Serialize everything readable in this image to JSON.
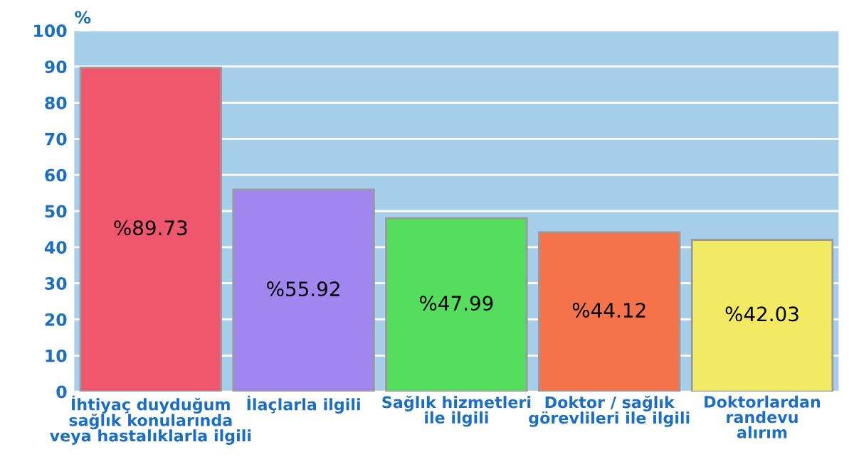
{
  "chart_data": {
    "type": "bar",
    "ylabel": "%",
    "categories": [
      "İhtiyaç duyduğum\nsağlık konularında\nveya hastalıklarla ilgili",
      "İlaçlarla ilgili",
      "Sağlık hizmetleri\nile ilgili",
      "Doktor / sağlık\ngörevlileri ile ilgili",
      "Doktorlardan\nrandevu\nalırım"
    ],
    "values": [
      89.73,
      55.92,
      47.99,
      44.12,
      42.03
    ],
    "colors": [
      "#f0566e",
      "#a286f0",
      "#55dd5e",
      "#f5734a",
      "#f2ea62"
    ],
    "value_labels": [
      "%89.73",
      "%55.92",
      "%47.99",
      "%44.12",
      "%42.03"
    ],
    "ylim": [
      0,
      100
    ],
    "yticks": [
      0,
      10,
      20,
      30,
      40,
      50,
      60,
      70,
      80,
      90,
      100
    ],
    "grid": "y"
  }
}
